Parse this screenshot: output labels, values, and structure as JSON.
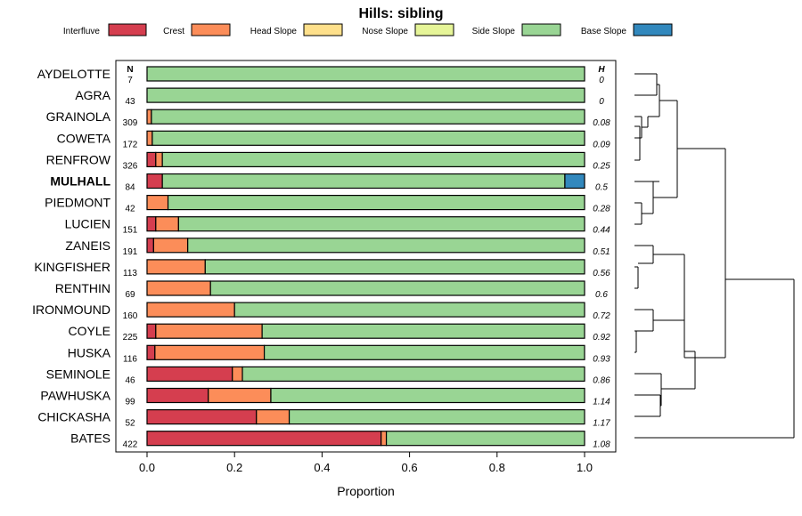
{
  "chart_data": {
    "type": "bar",
    "orientation": "horizontal",
    "stacked": true,
    "title": "Hills: sibling",
    "xlabel": "Proportion",
    "ylabel": "",
    "xlim": [
      0,
      1
    ],
    "x_ticks": [
      "0.0",
      "0.2",
      "0.4",
      "0.6",
      "0.8",
      "1.0"
    ],
    "n_header": "N",
    "h_header": "H",
    "highlighted_category": "MULHALL",
    "legend_position": "top",
    "categories": [
      "AYDELOTTE",
      "AGRA",
      "GRAINOLA",
      "COWETA",
      "RENFROW",
      "MULHALL",
      "PIEDMONT",
      "LUCIEN",
      "ZANEIS",
      "KINGFISHER",
      "RENTHIN",
      "IRONMOUND",
      "COYLE",
      "HUSKA",
      "SEMINOLE",
      "PAWHUSKA",
      "CHICKASHA",
      "BATES"
    ],
    "n": [
      "7",
      "43",
      "309",
      "172",
      "326",
      "84",
      "42",
      "151",
      "191",
      "113",
      "69",
      "160",
      "225",
      "116",
      "46",
      "99",
      "52",
      "422"
    ],
    "h": [
      "0",
      "0",
      "0.08",
      "0.09",
      "0.25",
      "0.5",
      "0.28",
      "0.44",
      "0.51",
      "0.56",
      "0.6",
      "0.72",
      "0.92",
      "0.93",
      "0.86",
      "1.14",
      "1.17",
      "1.08"
    ],
    "series": [
      {
        "name": "Interfluve",
        "color": "#d53e4f",
        "values": [
          0,
          0,
          0,
          0,
          0.02,
          0.035,
          0,
          0.02,
          0.015,
          0,
          0,
          0,
          0.02,
          0.018,
          0.195,
          0.14,
          0.25,
          0.535
        ]
      },
      {
        "name": "Crest",
        "color": "#fc8d59",
        "values": [
          0,
          0,
          0.01,
          0.012,
          0.015,
          0,
          0.048,
          0.052,
          0.078,
          0.133,
          0.145,
          0.2,
          0.243,
          0.25,
          0.023,
          0.143,
          0.075,
          0.012
        ]
      },
      {
        "name": "Head Slope",
        "color": "#fee08b",
        "values": [
          0,
          0,
          0,
          0,
          0,
          0,
          0,
          0,
          0,
          0,
          0,
          0,
          0,
          0,
          0,
          0,
          0,
          0
        ]
      },
      {
        "name": "Nose Slope",
        "color": "#e6f598",
        "values": [
          0,
          0,
          0,
          0,
          0,
          0,
          0,
          0,
          0,
          0,
          0,
          0,
          0,
          0,
          0,
          0,
          0,
          0
        ]
      },
      {
        "name": "Side Slope",
        "color": "#99d594",
        "values": [
          1,
          1,
          0.99,
          0.988,
          0.965,
          0.92,
          0.952,
          0.928,
          0.907,
          0.867,
          0.855,
          0.8,
          0.737,
          0.732,
          0.782,
          0.717,
          0.675,
          0.453
        ]
      },
      {
        "name": "Base Slope",
        "color": "#3288bd",
        "values": [
          0,
          0,
          0,
          0,
          0,
          0.045,
          0,
          0,
          0,
          0,
          0,
          0,
          0,
          0,
          0,
          0,
          0,
          0
        ]
      }
    ]
  }
}
